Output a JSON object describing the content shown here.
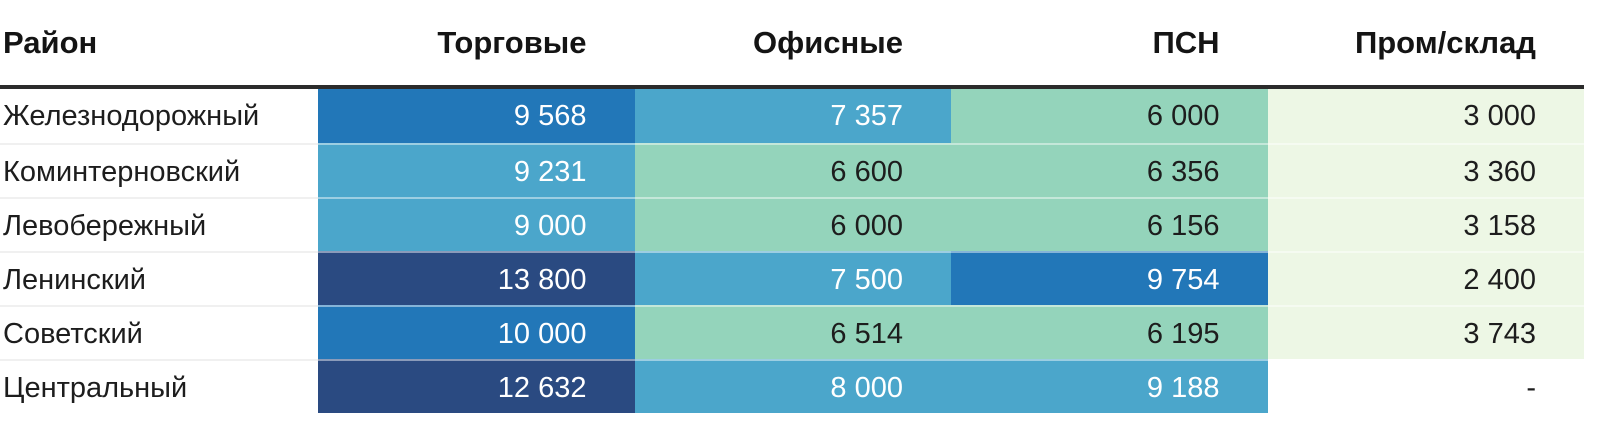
{
  "table_title": "",
  "chart_data": {
    "type": "heatmap",
    "row_label_header": "Район",
    "columns": [
      "Торговые",
      "Офисные",
      "ПСН",
      "Пром/склад"
    ],
    "rows": [
      "Железнодорожный",
      "Коминтерновский",
      "Левобережный",
      "Ленинский",
      "Советский",
      "Центральный"
    ],
    "values": [
      [
        9568,
        7357,
        6000,
        3000
      ],
      [
        9231,
        6600,
        6356,
        3360
      ],
      [
        9000,
        6000,
        6156,
        3158
      ],
      [
        13800,
        7500,
        9754,
        2400
      ],
      [
        10000,
        6514,
        6195,
        3743
      ],
      [
        12632,
        8000,
        9188,
        null
      ]
    ],
    "display": [
      [
        "9 568",
        "7 357",
        "6 000",
        "3 000"
      ],
      [
        "9 231",
        "6 600",
        "6 356",
        "3 360"
      ],
      [
        "9 000",
        "6 000",
        "6 156",
        "3 158"
      ],
      [
        "13 800",
        "7 500",
        "9 754",
        "2 400"
      ],
      [
        "10 000",
        "6 514",
        "6 195",
        "3 743"
      ],
      [
        "12 632",
        "8 000",
        "9 188",
        "-"
      ]
    ],
    "cell_tones": [
      [
        "blue-strong",
        "blue-light",
        "green",
        "green-pale"
      ],
      [
        "blue-light",
        "green",
        "green",
        "green-pale"
      ],
      [
        "blue-light",
        "green",
        "green",
        "green-pale"
      ],
      [
        "blue-navy",
        "blue-light",
        "blue-strong",
        "green-pale"
      ],
      [
        "blue-strong",
        "green",
        "green",
        "green-pale"
      ],
      [
        "blue-navy",
        "blue-light",
        "blue-light",
        "none"
      ]
    ],
    "palette": {
      "blue-navy": {
        "bg": "#2a4a81",
        "text": "#ffffff"
      },
      "blue-strong": {
        "bg": "#2277b8",
        "text": "#ffffff"
      },
      "blue-light": {
        "bg": "#4ba6cb",
        "text": "#ffffff"
      },
      "green": {
        "bg": "#94d4bb",
        "text": "#1d1d1d"
      },
      "green-pale": {
        "bg": "#edf7e5",
        "text": "#1d1d1d"
      },
      "none": {
        "bg": "#ffffff",
        "text": "#1d1d1d"
      }
    },
    "header_rule_color": "#2b2b2b",
    "legend_position": "none",
    "grid": false
  }
}
